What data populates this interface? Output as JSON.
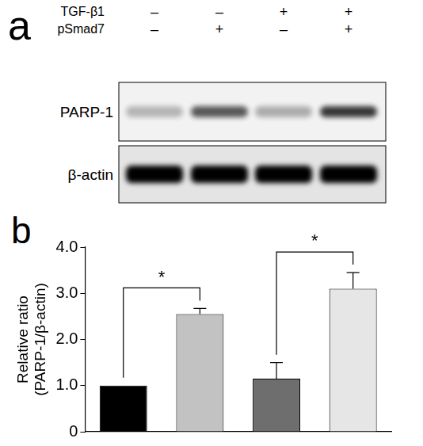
{
  "blot": {
    "label": "a",
    "conditions": [
      {
        "name": "TGF-β1",
        "signs": [
          "–",
          "–",
          "+",
          "+"
        ]
      },
      {
        "name": "pSmad7",
        "signs": [
          "–",
          "+",
          "–",
          "+"
        ]
      }
    ],
    "bands": [
      {
        "name": "PARP-1"
      },
      {
        "name": "β-actin"
      }
    ]
  },
  "chart_data": {
    "type": "bar",
    "label": "b",
    "categories": [
      null,
      null,
      null,
      null
    ],
    "values": [
      1.0,
      2.55,
      1.15,
      3.1
    ],
    "errors": [
      0,
      0.12,
      0.35,
      0.35
    ],
    "colors": [
      "#000000",
      "#c2c2c2",
      "#6e6e6e",
      "#e6e6e6"
    ],
    "y_label": [
      "Relative ratio",
      "(PARP-1/β-actin)"
    ],
    "ylim": [
      0,
      4
    ],
    "yticks": [
      0,
      {
        "value": 1,
        "label": "1.0"
      },
      {
        "value": 2,
        "label": "2.0"
      },
      {
        "value": 3,
        "label": "3.0"
      },
      {
        "value": 4,
        "label": "4.0"
      }
    ],
    "grid": false,
    "tick_labels": "y",
    "annotations": [
      {
        "from": 0,
        "to": 1,
        "text": "*"
      },
      {
        "from": 2,
        "to": 3,
        "text": "*"
      }
    ]
  }
}
